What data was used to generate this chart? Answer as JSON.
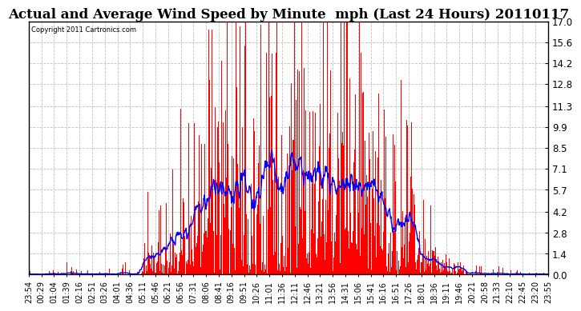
{
  "title": "Actual and Average Wind Speed by Minute  mph (Last 24 Hours) 20110117",
  "copyright": "Copyright 2011 Cartronics.com",
  "yticks": [
    0.0,
    1.4,
    2.8,
    4.2,
    5.7,
    7.1,
    8.5,
    9.9,
    11.3,
    12.8,
    14.2,
    15.6,
    17.0
  ],
  "ymax": 17.0,
  "ymin": 0.0,
  "bar_color": "#FF0000",
  "line_color": "#0000FF",
  "bg_color": "#FFFFFF",
  "grid_color": "#C0C0C0",
  "title_fontsize": 12,
  "xlabel_fontsize": 7,
  "ylabel_fontsize": 8.5,
  "xtick_labels": [
    "23:54",
    "00:29",
    "01:04",
    "01:39",
    "02:16",
    "02:51",
    "03:26",
    "04:01",
    "04:36",
    "05:11",
    "05:46",
    "06:21",
    "06:56",
    "07:31",
    "08:06",
    "08:41",
    "09:16",
    "09:51",
    "10:26",
    "11:01",
    "11:36",
    "12:11",
    "12:46",
    "13:21",
    "13:56",
    "14:31",
    "15:06",
    "15:41",
    "16:16",
    "16:51",
    "17:26",
    "18:01",
    "18:36",
    "19:11",
    "19:46",
    "20:21",
    "20:58",
    "21:33",
    "22:10",
    "22:45",
    "23:20",
    "23:55"
  ]
}
